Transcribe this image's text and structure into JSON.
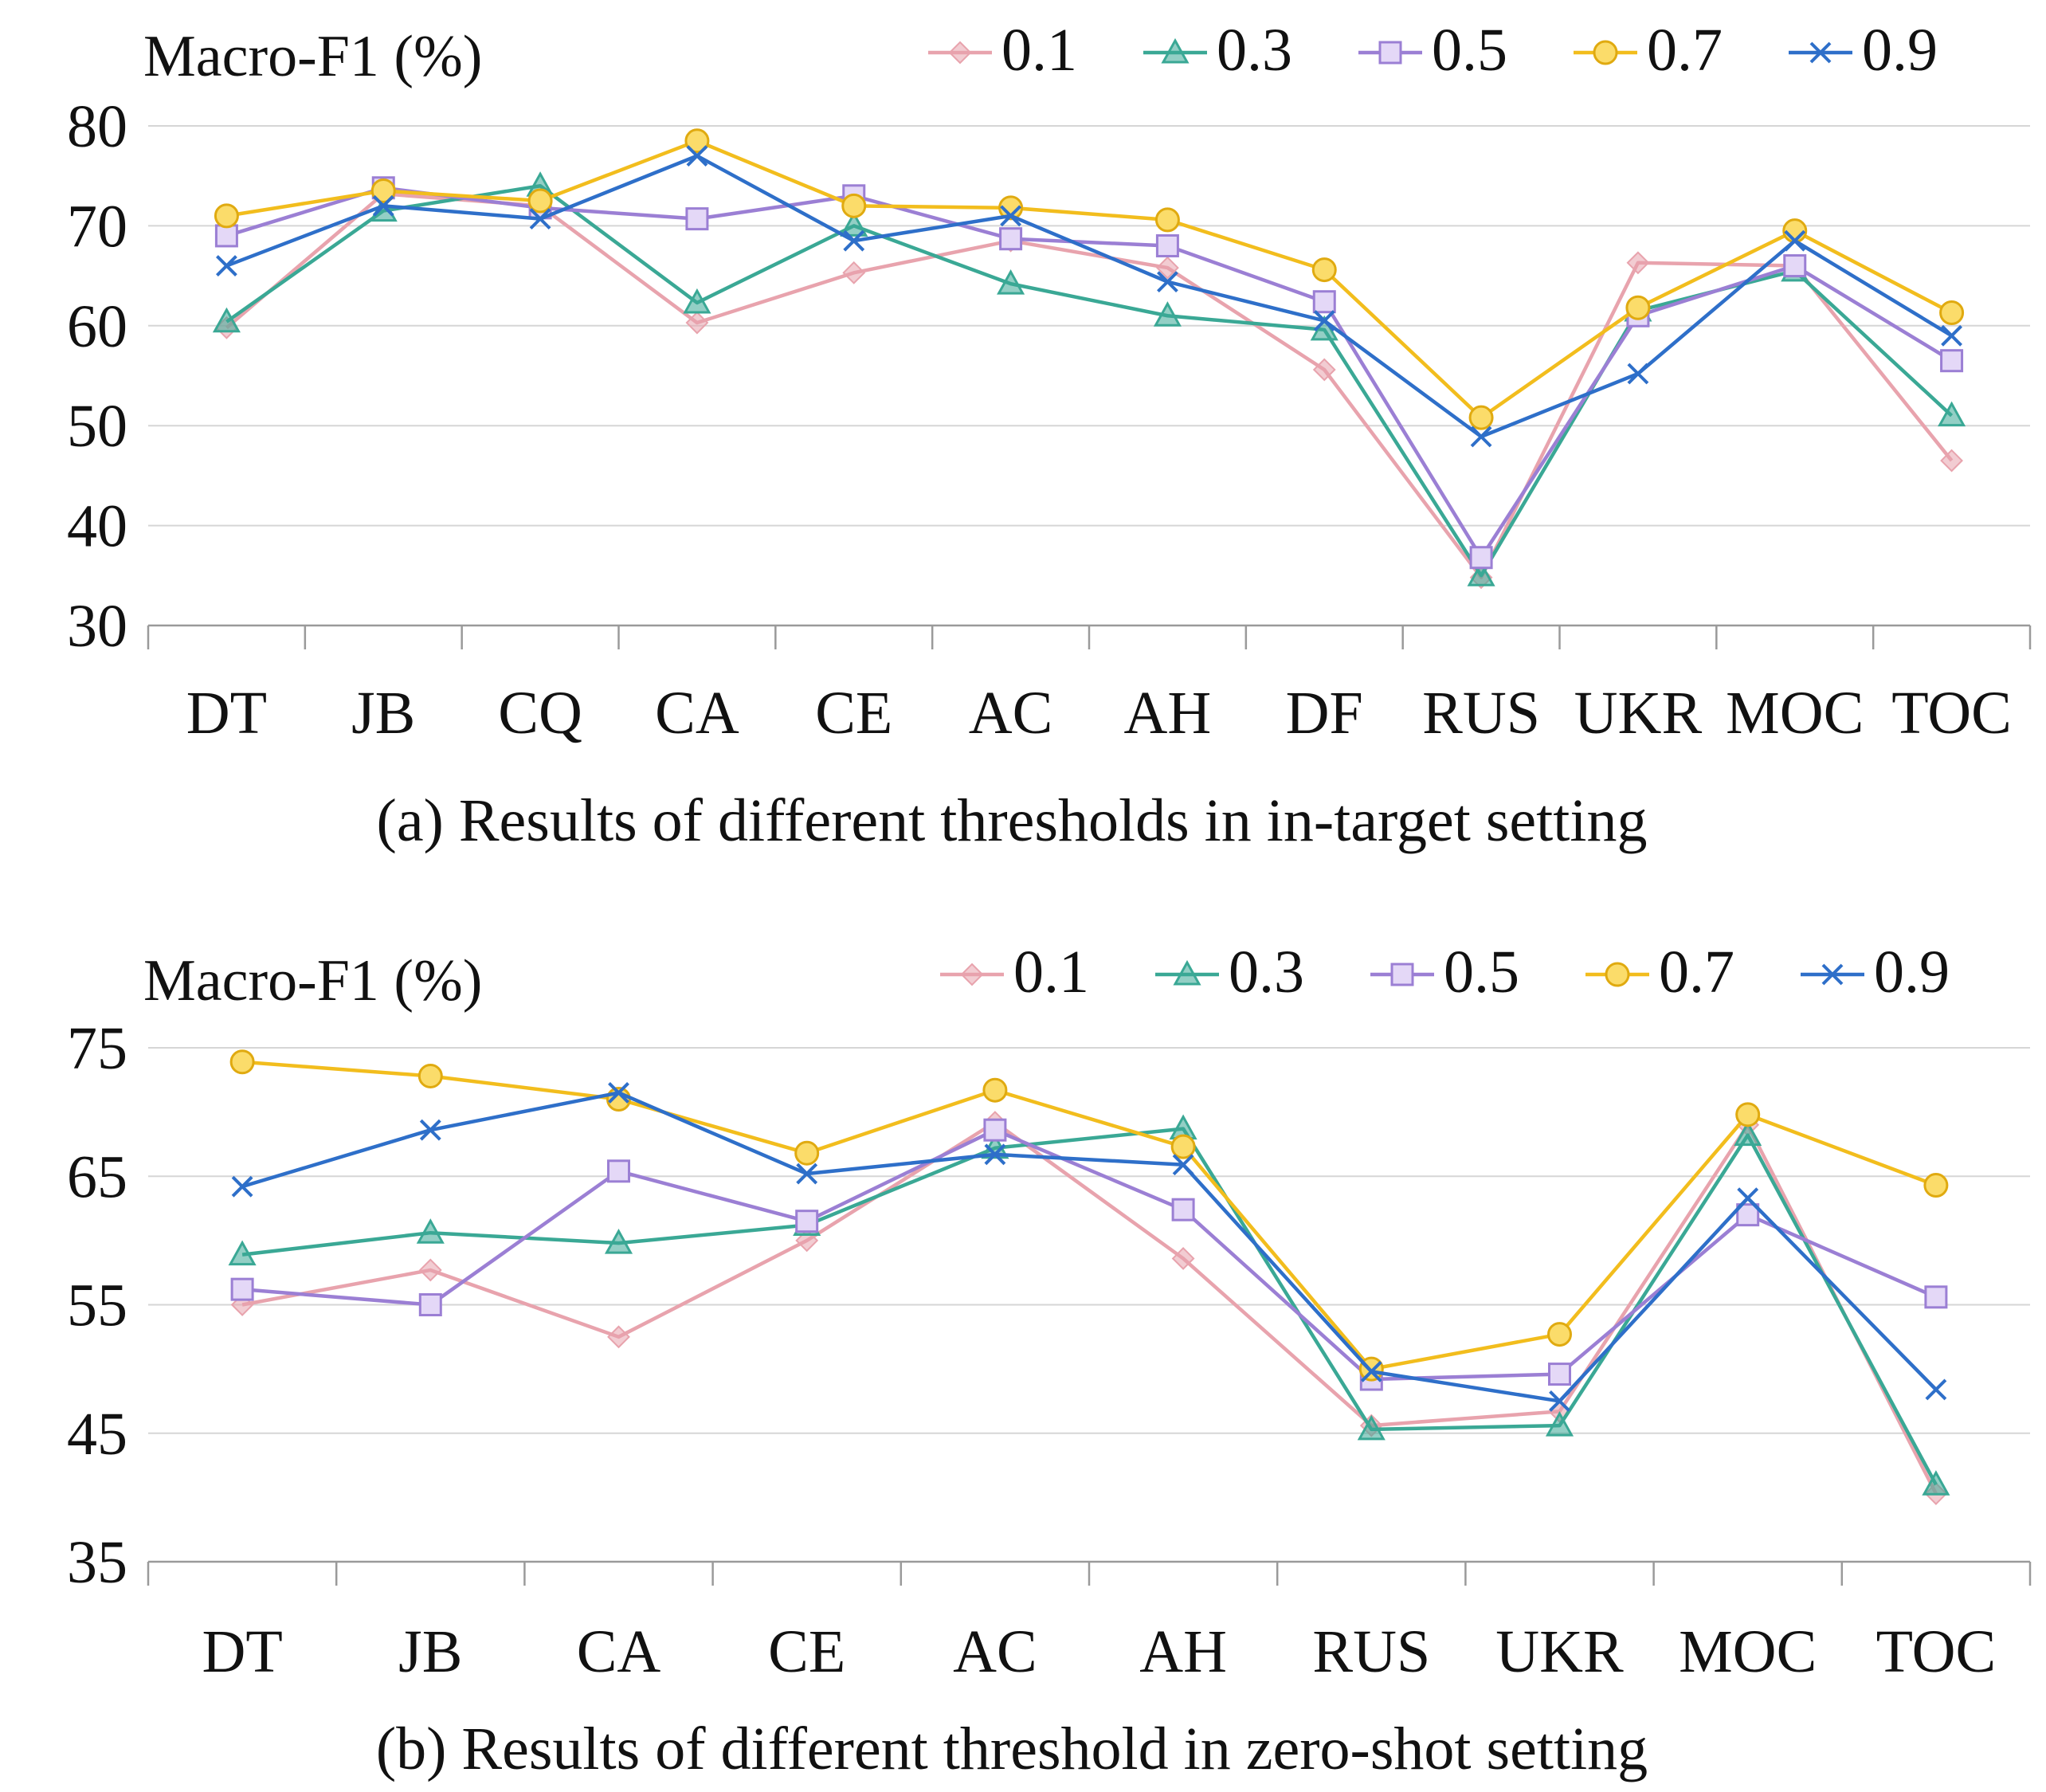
{
  "chart_data": [
    {
      "type": "line",
      "title": "(a)  Results of  different thresholds in in-target setting",
      "ylabel": "Macro-F1 (%)",
      "xlabel": "",
      "ylim": [
        30,
        80
      ],
      "yticks": [
        30,
        40,
        50,
        60,
        70,
        80
      ],
      "grid": true,
      "legend": "top-right",
      "categories": [
        "DT",
        "JB",
        "CQ",
        "CA",
        "CE",
        "AC",
        "AH",
        "DF",
        "RUS",
        "UKR",
        "MOC",
        "TOC"
      ],
      "series": [
        {
          "name": "0.1",
          "marker": "diamond",
          "color": "#e8a3ad",
          "values": [
            59.8,
            73.2,
            72.0,
            60.3,
            65.3,
            68.5,
            65.8,
            55.6,
            34.8,
            66.3,
            66.0,
            46.5
          ]
        },
        {
          "name": "0.3",
          "marker": "triangle",
          "color": "#3aa895",
          "values": [
            60.4,
            71.5,
            74.0,
            62.3,
            70.0,
            64.2,
            61.0,
            59.6,
            35.0,
            61.5,
            65.5,
            51.0
          ]
        },
        {
          "name": "0.5",
          "marker": "square",
          "color": "#9b7fd4",
          "values": [
            69.0,
            73.8,
            71.8,
            70.7,
            73.0,
            68.7,
            68.0,
            62.4,
            36.8,
            61.0,
            66.0,
            56.5
          ]
        },
        {
          "name": "0.7",
          "marker": "circle",
          "color": "#f2bd1d",
          "values": [
            71.0,
            73.5,
            72.5,
            78.5,
            72.0,
            71.8,
            70.6,
            65.6,
            50.8,
            61.8,
            69.5,
            61.3
          ]
        },
        {
          "name": "0.9",
          "marker": "x",
          "color": "#2e6fc9",
          "values": [
            66.0,
            72.0,
            70.7,
            77.0,
            68.5,
            71.0,
            64.4,
            60.5,
            48.9,
            55.2,
            68.5,
            59.0
          ]
        }
      ]
    },
    {
      "type": "line",
      "title": "(b)  Results of  different threshold in zero-shot setting",
      "ylabel": "Macro-F1 (%)",
      "xlabel": "",
      "ylim": [
        35,
        75
      ],
      "yticks": [
        35,
        45,
        55,
        65,
        75
      ],
      "grid": true,
      "legend": "top-right",
      "categories": [
        "DT",
        "JB",
        "CA",
        "CE",
        "AC",
        "AH",
        "RUS",
        "UKR",
        "MOC",
        "TOC"
      ],
      "series": [
        {
          "name": "0.1",
          "marker": "diamond",
          "color": "#e8a3ad",
          "values": [
            55.0,
            57.7,
            52.5,
            60.0,
            69.2,
            58.6,
            45.6,
            46.7,
            69.0,
            40.3
          ]
        },
        {
          "name": "0.3",
          "marker": "triangle",
          "color": "#3aa895",
          "values": [
            58.9,
            60.6,
            59.8,
            61.2,
            67.2,
            68.7,
            45.3,
            45.6,
            68.2,
            41.0
          ]
        },
        {
          "name": "0.5",
          "marker": "square",
          "color": "#9b7fd4",
          "values": [
            56.2,
            55.0,
            65.4,
            61.5,
            68.6,
            62.4,
            49.2,
            49.6,
            62.0,
            55.6
          ]
        },
        {
          "name": "0.7",
          "marker": "circle",
          "color": "#f2bd1d",
          "values": [
            73.9,
            72.8,
            71.0,
            66.8,
            71.7,
            67.3,
            50.0,
            52.7,
            69.8,
            64.3
          ]
        },
        {
          "name": "0.9",
          "marker": "x",
          "color": "#2e6fc9",
          "values": [
            64.2,
            68.6,
            71.5,
            65.2,
            66.7,
            65.9,
            49.8,
            47.5,
            63.3,
            48.4
          ]
        }
      ]
    }
  ]
}
